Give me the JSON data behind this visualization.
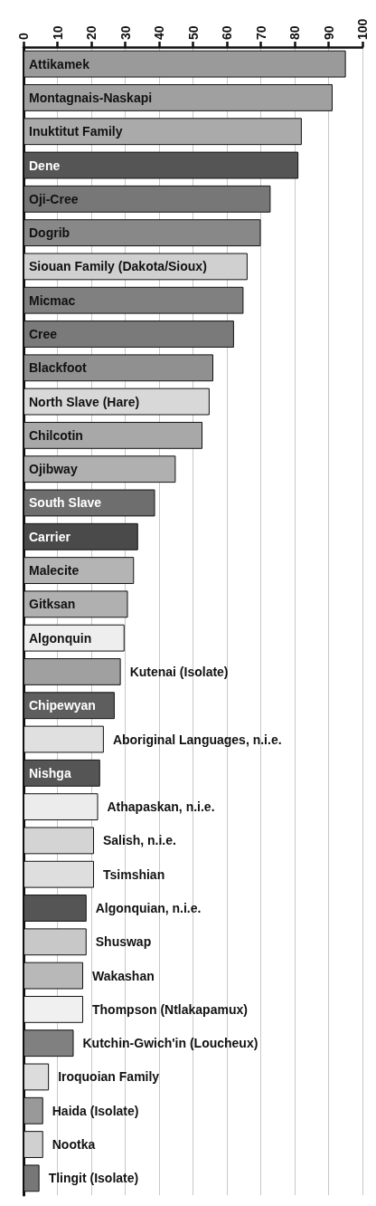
{
  "chart_data": {
    "type": "bar",
    "orientation": "horizontal",
    "grid": "x",
    "tick_labels": "x",
    "xlim": [
      0,
      100
    ],
    "xticks": [
      0,
      10,
      20,
      30,
      40,
      50,
      60,
      70,
      80,
      90,
      100
    ],
    "categories": [
      "Attikamek",
      "Montagnais-Naskapi",
      "Inuktitut Family",
      "Dene",
      "Oji-Cree",
      "Dogrib",
      "Siouan Family (Dakota/Sioux)",
      "Micmac",
      "Cree",
      "Blackfoot",
      "North Slave (Hare)",
      "Chilcotin",
      "Ojibway",
      "South Slave",
      "Carrier",
      "Malecite",
      "Gitksan",
      "Algonquin",
      "Kutenai (Isolate)",
      "Chipewyan",
      "Aboriginal Languages, n.i.e.",
      "Nishga",
      "Athapaskan, n.i.e.",
      "Salish, n.i.e.",
      "Tsimshian",
      "Algonquian, n.i.e.",
      "Shuswap",
      "Wakashan",
      "Thompson (Ntlakapamux)",
      "Kutchin-Gwich'in (Loucheux)",
      "Iroquoian Family",
      "Haida (Isolate)",
      "Nootka",
      "Tlingit (Isolate)"
    ],
    "values": [
      95.1,
      91.2,
      82.1,
      81.1,
      72.9,
      70.0,
      66.1,
      64.9,
      62.1,
      56.0,
      54.9,
      52.8,
      44.9,
      38.8,
      33.8,
      32.6,
      30.8,
      29.8,
      28.7,
      26.9,
      23.7,
      22.6,
      22.0,
      20.8,
      20.8,
      18.6,
      18.6,
      17.6,
      17.6,
      14.8,
      7.5,
      5.8,
      5.8,
      4.7
    ],
    "colors": [
      "#9a9a9a",
      "#a0a0a0",
      "#aaaaaa",
      "#555555",
      "#777777",
      "#888888",
      "#d0d0d0",
      "#808080",
      "#7a7a7a",
      "#909090",
      "#d8d8d8",
      "#a8a8a8",
      "#b0b0b0",
      "#6e6e6e",
      "#4a4a4a",
      "#b4b4b4",
      "#b0b0b0",
      "#eeeeee",
      "#a0a0a0",
      "#5e5e5e",
      "#e0e0e0",
      "#555555",
      "#ececec",
      "#d4d4d4",
      "#dedede",
      "#555555",
      "#c8c8c8",
      "#b8b8b8",
      "#f0f0f0",
      "#808080",
      "#dcdcdc",
      "#999999",
      "#d0d0d0",
      "#777777"
    ]
  }
}
